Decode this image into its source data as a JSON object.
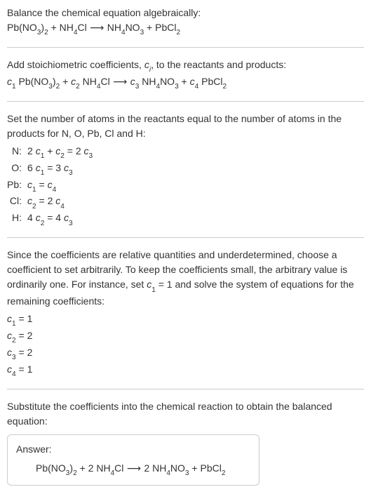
{
  "section1": {
    "line1": "Balance the chemical equation algebraically:",
    "eq_parts": {
      "r1": "Pb(NO",
      "r1s": "3",
      "r1b": ")",
      "r1s2": "2",
      "plus1": " + ",
      "r2": "NH",
      "r2s": "4",
      "r2b": "Cl",
      "arrow": " ⟶ ",
      "p1": "NH",
      "p1s": "4",
      "p1b": "NO",
      "p1s2": "3",
      "plus2": " + ",
      "p2": "PbCl",
      "p2s": "2"
    }
  },
  "section2": {
    "line1_a": "Add stoichiometric coefficients, ",
    "line1_ci": "c",
    "line1_ci_sub": "i",
    "line1_b": ", to the reactants and products:",
    "eq_parts": {
      "c1": "c",
      "c1s": "1",
      "sp1": " ",
      "r1": "Pb(NO",
      "r1s": "3",
      "r1b": ")",
      "r1s2": "2",
      "plus1": " + ",
      "c2": "c",
      "c2s": "2",
      "sp2": " ",
      "r2": "NH",
      "r2s": "4",
      "r2b": "Cl",
      "arrow": " ⟶ ",
      "c3": "c",
      "c3s": "3",
      "sp3": " ",
      "p1": "NH",
      "p1s": "4",
      "p1b": "NO",
      "p1s2": "3",
      "plus2": " + ",
      "c4": "c",
      "c4s": "4",
      "sp4": " ",
      "p2": "PbCl",
      "p2s": "2"
    }
  },
  "section3": {
    "line1": "Set the number of atoms in the reactants equal to the number of atoms in the products for N, O, Pb, Cl and H:",
    "rows": [
      {
        "label": "N:",
        "lhs_a": "2 ",
        "lhs_c1": "c",
        "lhs_c1s": "1",
        "lhs_b": " + ",
        "lhs_c2": "c",
        "lhs_c2s": "2",
        "eq": " = 2 ",
        "rhs_c": "c",
        "rhs_cs": "3",
        "rhs_tail": ""
      },
      {
        "label": "O:",
        "lhs_a": "6 ",
        "lhs_c1": "c",
        "lhs_c1s": "1",
        "lhs_b": "",
        "lhs_c2": "",
        "lhs_c2s": "",
        "eq": " = 3 ",
        "rhs_c": "c",
        "rhs_cs": "3",
        "rhs_tail": ""
      },
      {
        "label": "Pb:",
        "lhs_a": "",
        "lhs_c1": "c",
        "lhs_c1s": "1",
        "lhs_b": "",
        "lhs_c2": "",
        "lhs_c2s": "",
        "eq": " = ",
        "rhs_c": "c",
        "rhs_cs": "4",
        "rhs_tail": ""
      },
      {
        "label": "Cl:",
        "lhs_a": "",
        "lhs_c1": "c",
        "lhs_c1s": "2",
        "lhs_b": "",
        "lhs_c2": "",
        "lhs_c2s": "",
        "eq": " = 2 ",
        "rhs_c": "c",
        "rhs_cs": "4",
        "rhs_tail": ""
      },
      {
        "label": "H:",
        "lhs_a": "4 ",
        "lhs_c1": "c",
        "lhs_c1s": "2",
        "lhs_b": "",
        "lhs_c2": "",
        "lhs_c2s": "",
        "eq": " = 4 ",
        "rhs_c": "c",
        "rhs_cs": "3",
        "rhs_tail": ""
      }
    ]
  },
  "section4": {
    "line1_a": "Since the coefficients are relative quantities and underdetermined, choose a coefficient to set arbitrarily. To keep the coefficients small, the arbitrary value is ordinarily one. For instance, set ",
    "line1_c": "c",
    "line1_cs": "1",
    "line1_b": " = 1 and solve the system of equations for the remaining coefficients:",
    "coefs": [
      {
        "c": "c",
        "cs": "1",
        "val": " = 1"
      },
      {
        "c": "c",
        "cs": "2",
        "val": " = 2"
      },
      {
        "c": "c",
        "cs": "3",
        "val": " = 2"
      },
      {
        "c": "c",
        "cs": "4",
        "val": " = 1"
      }
    ]
  },
  "section5": {
    "line1": "Substitute the coefficients into the chemical reaction to obtain the balanced equation:"
  },
  "answer": {
    "label": "Answer:",
    "eq_parts": {
      "r1": "Pb(NO",
      "r1s": "3",
      "r1b": ")",
      "r1s2": "2",
      "plus1": " + 2 ",
      "r2": "NH",
      "r2s": "4",
      "r2b": "Cl",
      "arrow": " ⟶ ",
      "pre_p1": "2 ",
      "p1": "NH",
      "p1s": "4",
      "p1b": "NO",
      "p1s2": "3",
      "plus2": " + ",
      "p2": "PbCl",
      "p2s": "2"
    }
  }
}
